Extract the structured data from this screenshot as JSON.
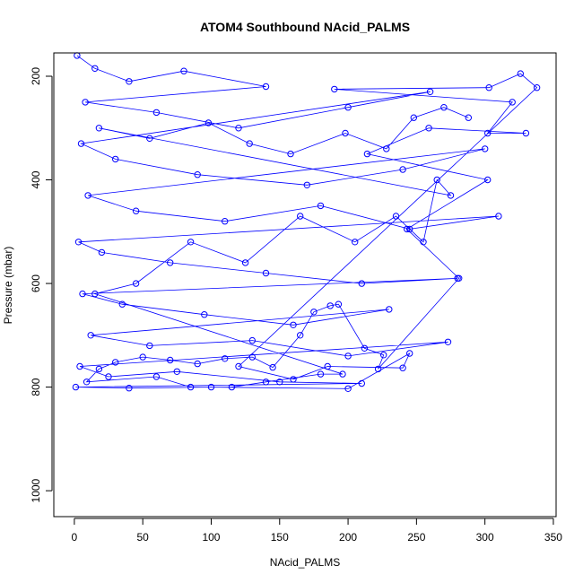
{
  "chart_data": {
    "type": "scatter",
    "title": "ATOM4 Southbound NAcid_PALMS",
    "xlabel": "NAcid_PALMS",
    "ylabel": "Pressure (mbar)",
    "xlim": [
      -15,
      352
    ],
    "ylim": [
      1050,
      155
    ],
    "y_reversed": true,
    "x_ticks": [
      0,
      50,
      100,
      150,
      200,
      250,
      300,
      350
    ],
    "y_ticks": [
      200,
      400,
      600,
      800,
      1000
    ],
    "grid": false,
    "legend": "none",
    "series": [
      {
        "color": "#0000ff",
        "marker": "open-circle",
        "connected": true,
        "points": [
          [
            2,
            160
          ],
          [
            15,
            185
          ],
          [
            40,
            210
          ],
          [
            80,
            190
          ],
          [
            140,
            220
          ],
          [
            8,
            250
          ],
          [
            60,
            270
          ],
          [
            120,
            300
          ],
          [
            200,
            260
          ],
          [
            260,
            230
          ],
          [
            5,
            330
          ],
          [
            30,
            360
          ],
          [
            90,
            390
          ],
          [
            170,
            410
          ],
          [
            240,
            380
          ],
          [
            300,
            340
          ],
          [
            10,
            430
          ],
          [
            45,
            460
          ],
          [
            110,
            480
          ],
          [
            180,
            450
          ],
          [
            245,
            495
          ],
          [
            310,
            470
          ],
          [
            3,
            520
          ],
          [
            20,
            540
          ],
          [
            70,
            560
          ],
          [
            140,
            580
          ],
          [
            210,
            600
          ],
          [
            280,
            590
          ],
          [
            6,
            620
          ],
          [
            35,
            640
          ],
          [
            95,
            660
          ],
          [
            160,
            680
          ],
          [
            230,
            650
          ],
          [
            12,
            700
          ],
          [
            55,
            720
          ],
          [
            130,
            710
          ],
          [
            200,
            740
          ],
          [
            273,
            713
          ],
          [
            4,
            760
          ],
          [
            25,
            780
          ],
          [
            75,
            770
          ],
          [
            150,
            790
          ],
          [
            210,
            793
          ],
          [
            1,
            800
          ],
          [
            40,
            802
          ],
          [
            100,
            800
          ],
          [
            200,
            803
          ],
          [
            245,
            735
          ],
          [
            240,
            763
          ],
          [
            185,
            760
          ],
          [
            160,
            785
          ],
          [
            120,
            760
          ],
          [
            338,
            222
          ],
          [
            326,
            195
          ],
          [
            303,
            222
          ],
          [
            190,
            225
          ],
          [
            320,
            250
          ],
          [
            302,
            310
          ],
          [
            330,
            310
          ],
          [
            259,
            300
          ],
          [
            214,
            350
          ],
          [
            302,
            400
          ],
          [
            243,
            495
          ],
          [
            281,
            590
          ],
          [
            222,
            765
          ],
          [
            226,
            738
          ],
          [
            212,
            725
          ],
          [
            193,
            640
          ],
          [
            187,
            643
          ],
          [
            175,
            655
          ],
          [
            165,
            700
          ],
          [
            145,
            762
          ],
          [
            130,
            742
          ],
          [
            110,
            745
          ],
          [
            90,
            755
          ],
          [
            70,
            748
          ],
          [
            50,
            742
          ],
          [
            30,
            752
          ],
          [
            18,
            765
          ],
          [
            9,
            790
          ],
          [
            60,
            780
          ],
          [
            85,
            800
          ],
          [
            115,
            800
          ],
          [
            140,
            790
          ],
          [
            180,
            775
          ],
          [
            196,
            775
          ],
          [
            15,
            620
          ],
          [
            45,
            600
          ],
          [
            85,
            520
          ],
          [
            125,
            560
          ],
          [
            165,
            470
          ],
          [
            205,
            520
          ],
          [
            235,
            470
          ],
          [
            255,
            520
          ],
          [
            265,
            400
          ],
          [
            275,
            430
          ],
          [
            18,
            300
          ],
          [
            55,
            320
          ],
          [
            98,
            290
          ],
          [
            128,
            330
          ],
          [
            158,
            350
          ],
          [
            198,
            310
          ],
          [
            228,
            340
          ],
          [
            248,
            280
          ],
          [
            270,
            260
          ],
          [
            288,
            280
          ]
        ]
      }
    ]
  }
}
